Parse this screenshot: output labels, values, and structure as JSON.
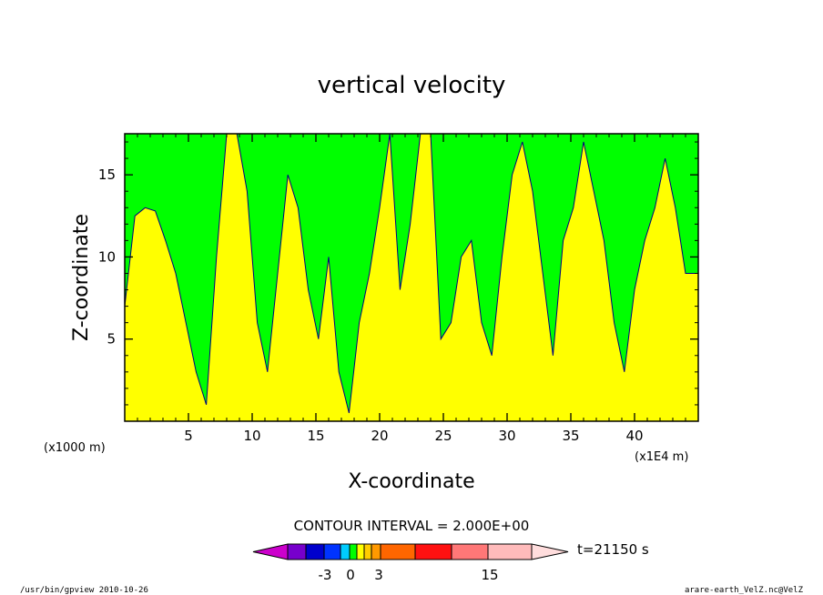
{
  "chart_data": {
    "type": "heatmap",
    "title": "vertical velocity",
    "xlabel": "X-coordinate",
    "ylabel": "Z-coordinate",
    "x_unit": "(x1E4 m)",
    "y_unit": "(x1000 m)",
    "xlim": [
      0,
      45
    ],
    "ylim": [
      0,
      17.5
    ],
    "xticks": [
      "5",
      "10",
      "15",
      "20",
      "25",
      "30",
      "35",
      "40"
    ],
    "yticks": [
      "5",
      "10",
      "15"
    ],
    "colors": {
      "negative": "#00ff00",
      "positive": "#ffff00",
      "contour": "#000080"
    },
    "columns": [
      [
        0.0,
        7
      ],
      [
        0.8,
        12.5
      ],
      [
        1.6,
        13
      ],
      [
        2.4,
        12.8
      ],
      [
        3.2,
        11
      ],
      [
        4.0,
        9
      ],
      [
        4.8,
        6
      ],
      [
        5.6,
        3
      ],
      [
        6.4,
        1
      ],
      [
        7.2,
        10
      ],
      [
        8.0,
        17.5
      ],
      [
        8.8,
        17.5
      ],
      [
        9.6,
        14
      ],
      [
        10.4,
        6
      ],
      [
        11.2,
        3
      ],
      [
        12.0,
        9
      ],
      [
        12.8,
        15
      ],
      [
        13.6,
        13
      ],
      [
        14.4,
        8
      ],
      [
        15.2,
        5
      ],
      [
        16.0,
        10
      ],
      [
        16.8,
        3
      ],
      [
        17.6,
        0.5
      ],
      [
        18.4,
        6
      ],
      [
        19.2,
        9
      ],
      [
        20.0,
        13
      ],
      [
        20.8,
        17.5
      ],
      [
        21.6,
        8
      ],
      [
        22.4,
        12
      ],
      [
        23.2,
        17.5
      ],
      [
        24.0,
        17.5
      ],
      [
        24.8,
        5
      ],
      [
        25.6,
        6
      ],
      [
        26.4,
        10
      ],
      [
        27.2,
        11
      ],
      [
        28.0,
        6
      ],
      [
        28.8,
        4
      ],
      [
        29.6,
        10
      ],
      [
        30.4,
        15
      ],
      [
        31.2,
        17
      ],
      [
        32.0,
        14
      ],
      [
        32.8,
        9
      ],
      [
        33.6,
        4
      ],
      [
        34.4,
        11
      ],
      [
        35.2,
        13
      ],
      [
        36.0,
        17
      ],
      [
        36.8,
        14
      ],
      [
        37.6,
        11
      ],
      [
        38.4,
        6
      ],
      [
        39.2,
        3
      ],
      [
        40.0,
        8
      ],
      [
        40.8,
        11
      ],
      [
        41.6,
        13
      ],
      [
        42.4,
        16
      ],
      [
        43.2,
        13
      ],
      [
        44.0,
        9
      ],
      [
        45.0,
        9
      ]
    ]
  },
  "contour_label": "CONTOUR INTERVAL = 2.000E+00",
  "time_label": "t=21150 s",
  "colorbar": {
    "colors": [
      "#cc00cc",
      "#7700cc",
      "#0000cc",
      "#0033ff",
      "#00ccff",
      "#00ff00",
      "#ffff00",
      "#ffcc00",
      "#ff9900",
      "#ff6600",
      "#ff1111",
      "#ff7777",
      "#ffbbbb",
      "#ffdddd"
    ],
    "labels": [
      "-3",
      "0",
      "3",
      "15"
    ]
  },
  "footer": {
    "left": "/usr/bin/gpview  2010-10-26",
    "right": "arare-earth_VelZ.nc@VelZ"
  }
}
